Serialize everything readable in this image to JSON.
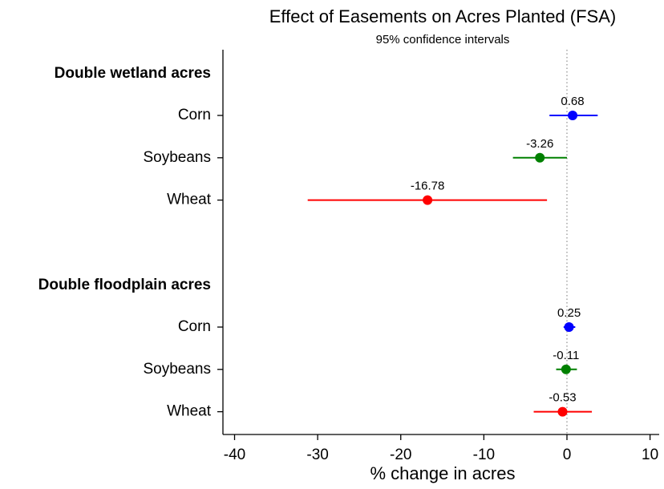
{
  "chart_data": {
    "type": "coefplot",
    "title": "Effect of Easements on Acres Planted (FSA)",
    "subtitle": "95% confidence intervals",
    "xlabel": "% change in acres",
    "xlim": [
      -41.4,
      11.1
    ],
    "xticks": [
      -40,
      -30,
      -20,
      -10,
      0,
      10
    ],
    "refline": 0,
    "groups": [
      {
        "name": "Double wetland acres",
        "categories": [
          "Corn",
          "Soybeans",
          "Wheat"
        ],
        "colors": [
          "#0000ff",
          "#008000",
          "#ff0000"
        ],
        "values": [
          0.68,
          -3.26,
          -16.78
        ],
        "ci_low": [
          -2.1,
          -6.5,
          -31.2
        ],
        "ci_high": [
          3.7,
          0.0,
          -2.4
        ]
      },
      {
        "name": "Double floodplain acres",
        "categories": [
          "Corn",
          "Soybeans",
          "Wheat"
        ],
        "colors": [
          "#0000ff",
          "#008000",
          "#ff0000"
        ],
        "values": [
          0.25,
          -0.11,
          -0.53
        ],
        "ci_low": [
          -0.4,
          -1.3,
          -4.0
        ],
        "ci_high": [
          1.0,
          1.2,
          3.0
        ]
      }
    ]
  }
}
